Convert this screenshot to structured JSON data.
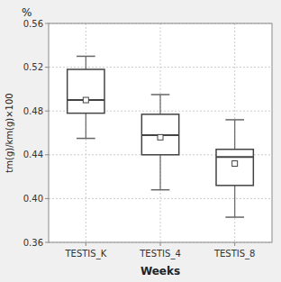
{
  "chart_data": {
    "type": "box",
    "title": "%",
    "xlabel": "Weeks",
    "ylabel": "tm(g)/km(g)×100",
    "categories": [
      "TESTIS_K",
      "TESTIS_4",
      "TESTIS_8"
    ],
    "boxes": [
      {
        "q1": 0.478,
        "median": 0.49,
        "q3": 0.518,
        "whislo": 0.455,
        "whishi": 0.53,
        "mean": 0.49
      },
      {
        "q1": 0.44,
        "median": 0.458,
        "q3": 0.477,
        "whislo": 0.408,
        "whishi": 0.495,
        "mean": 0.456
      },
      {
        "q1": 0.412,
        "median": 0.438,
        "q3": 0.445,
        "whislo": 0.383,
        "whishi": 0.472,
        "mean": 0.432
      }
    ],
    "ylim": [
      0.36,
      0.56
    ],
    "yticks": [
      0.36,
      {
        "value": 0.4,
        "label": "0.40"
      },
      0.44,
      0.48,
      0.52,
      0.56
    ],
    "grid": true,
    "color": "#444444",
    "marker": "square"
  }
}
